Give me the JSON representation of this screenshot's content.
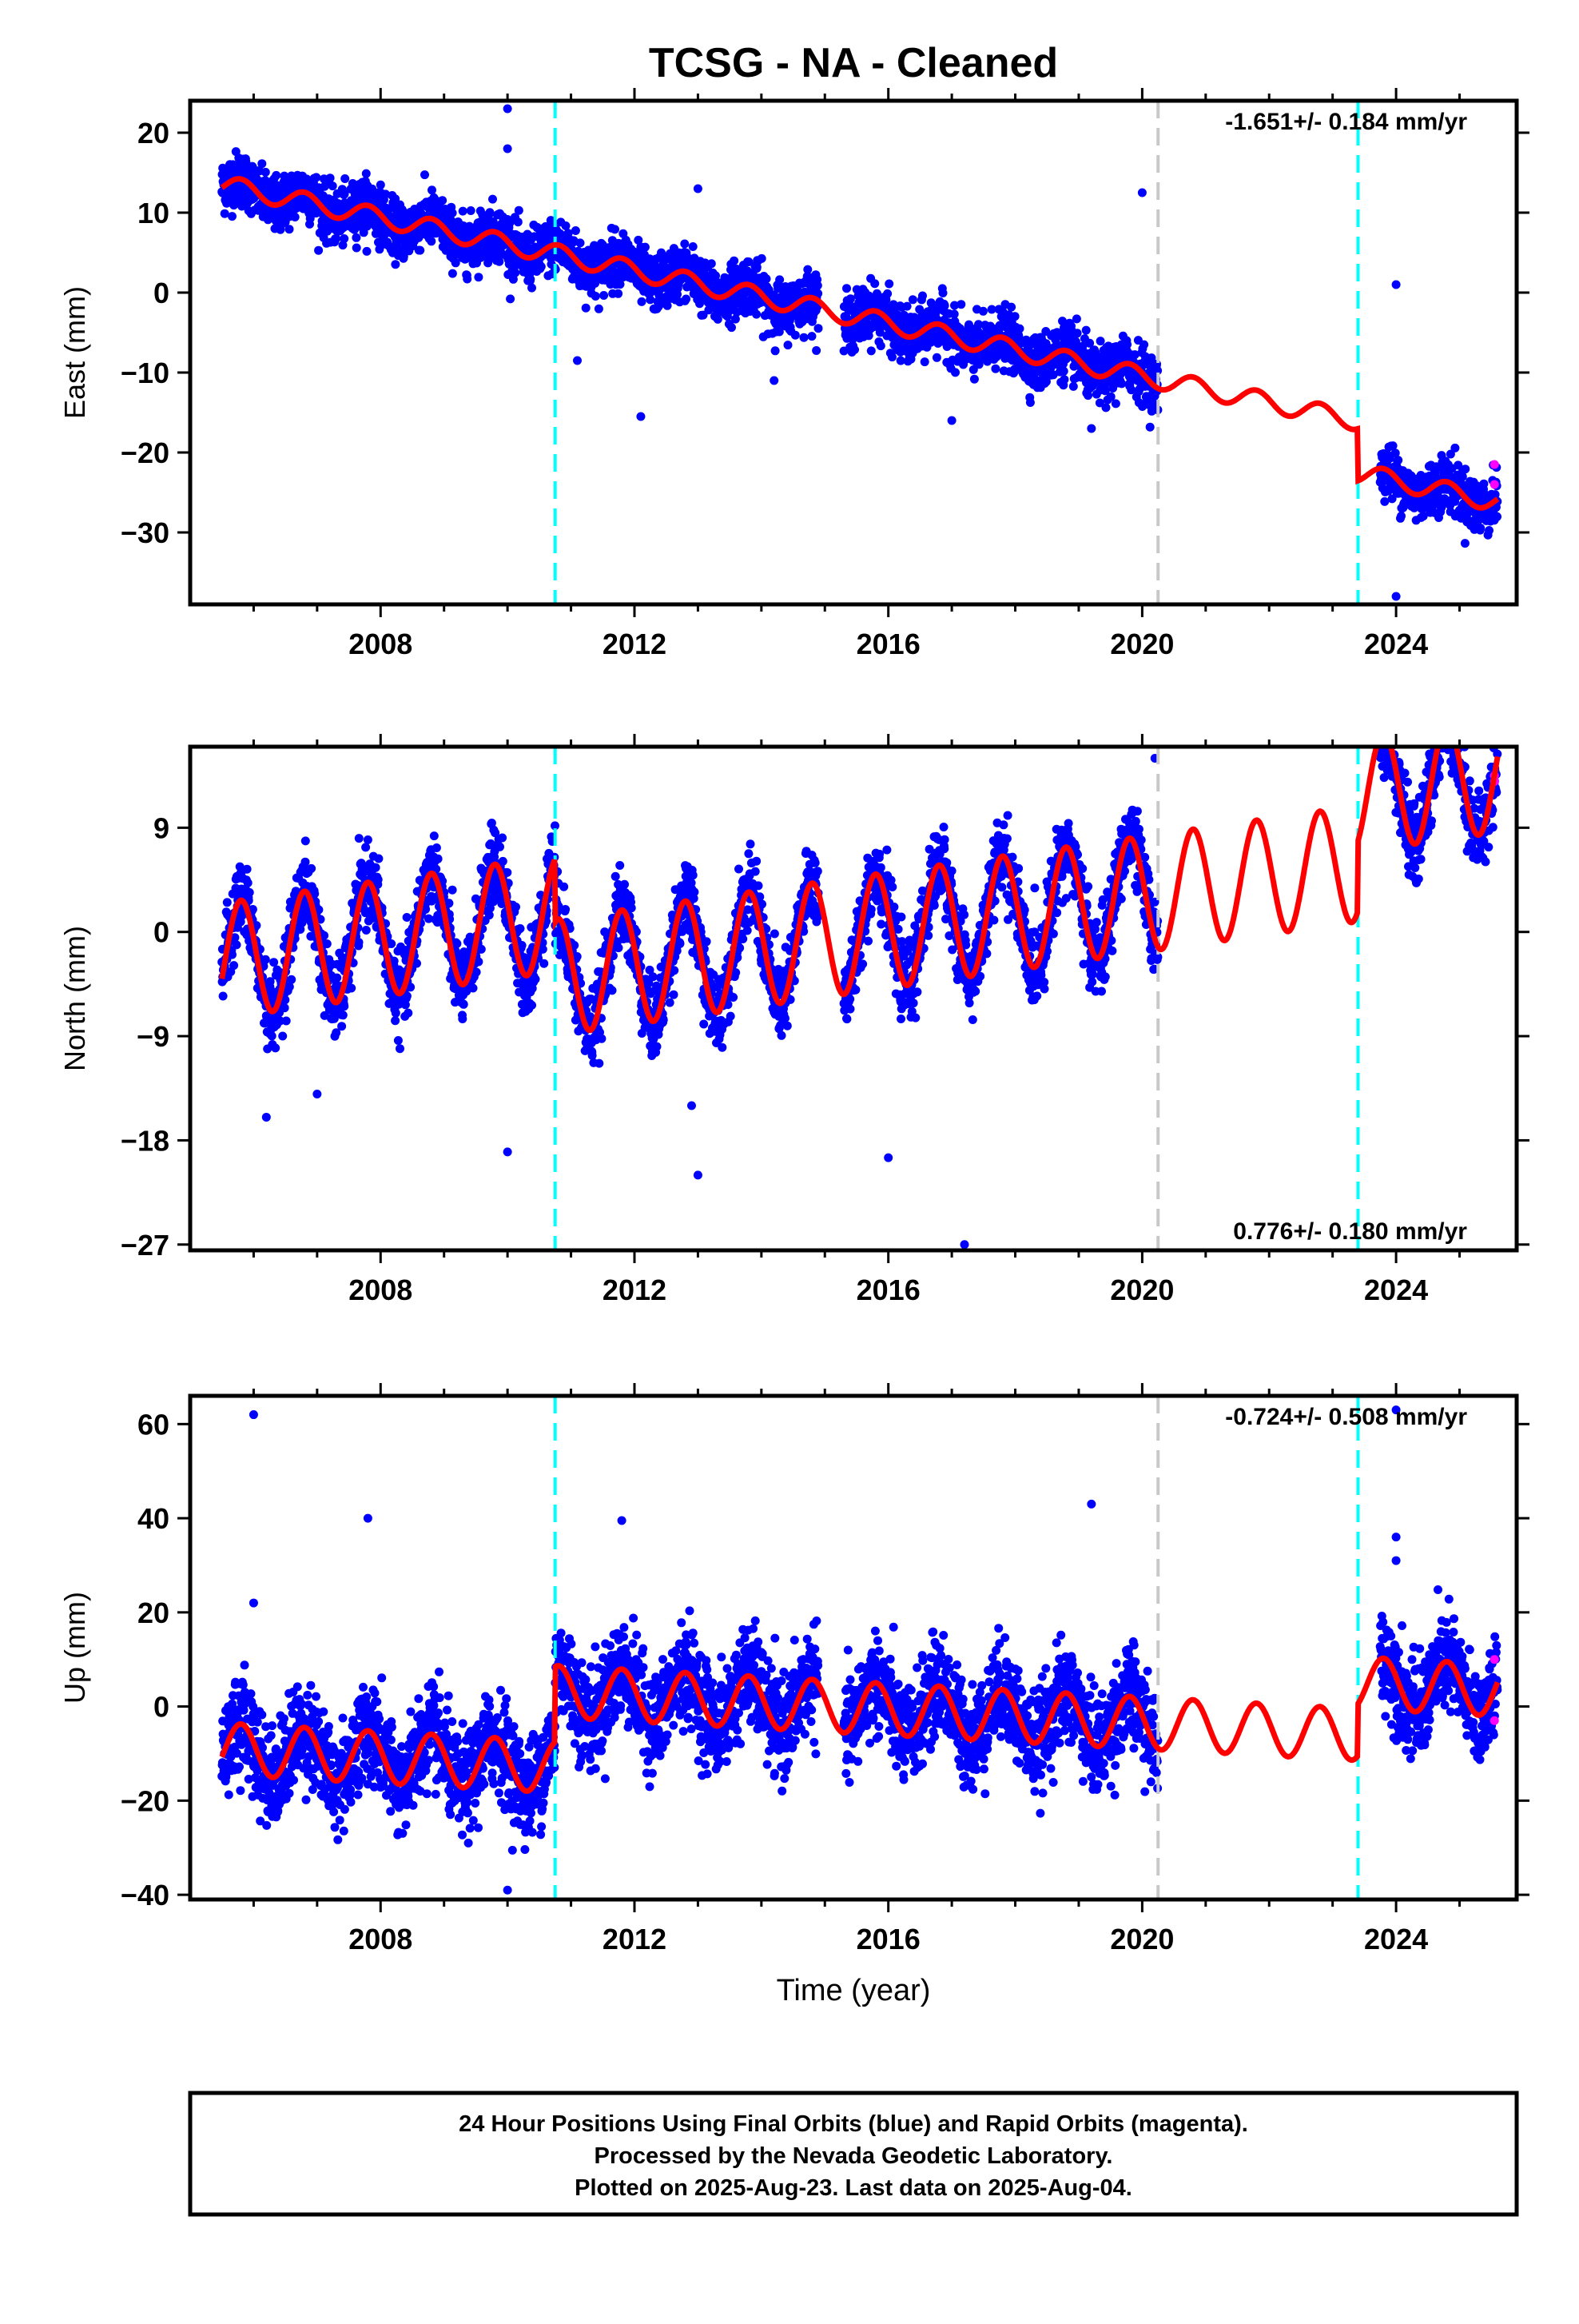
{
  "title": "TCSG  - NA - Cleaned",
  "colors": {
    "final_orbits": "#0000ff",
    "rapid_orbits": "#ff00ff",
    "model": "#ff0000",
    "equipment_change": "#00ffff",
    "reference_line": "#c8c8c8"
  },
  "chart_data": [
    {
      "type": "scatter",
      "panel": "east",
      "ylabel": "East (mm)",
      "xlim": [
        2005.0,
        2025.9
      ],
      "ylim": [
        -39,
        24
      ],
      "xticks": [
        2008,
        2012,
        2016,
        2020,
        2024
      ],
      "yticks": [
        20,
        10,
        0,
        -10,
        -20,
        -30
      ],
      "ytick_labels": [
        "20",
        "10",
        "0",
        "−10",
        "−20",
        "−30"
      ],
      "rate_label": "-1.651+/- 0.184 mm/yr",
      "rate_position": "top-right",
      "vertical_lines": [
        {
          "x": 2010.75,
          "color": "cyan"
        },
        {
          "x": 2020.25,
          "color": "gray"
        },
        {
          "x": 2023.4,
          "color": "cyan"
        }
      ],
      "model": {
        "value_at_start": 13.5,
        "rate": -1.651,
        "annual_amplitude": 1.2,
        "offsets": [
          {
            "x": 2023.4,
            "step": -6.5
          }
        ]
      },
      "data_segments": [
        [
          2005.5,
          2014.9
        ],
        [
          2015.3,
          2020.25
        ],
        [
          2023.75,
          2025.6
        ]
      ],
      "outliers": [
        [
          2010.0,
          23
        ],
        [
          2010.0,
          18
        ],
        [
          2011.1,
          -8.5
        ],
        [
          2012.1,
          -15.5
        ],
        [
          2013.0,
          13
        ],
        [
          2014.2,
          -11
        ],
        [
          2017.0,
          -16
        ],
        [
          2019.2,
          -17
        ],
        [
          2020.0,
          12.5
        ],
        [
          2024.0,
          1
        ],
        [
          2024.0,
          -38
        ]
      ],
      "rapid_points": [
        [
          2025.55,
          -21.5
        ],
        [
          2025.55,
          -24
        ]
      ]
    },
    {
      "type": "scatter",
      "panel": "north",
      "ylabel": "North (mm)",
      "xlim": [
        2005.0,
        2025.9
      ],
      "ylim": [
        -27.5,
        16
      ],
      "xticks": [
        2008,
        2012,
        2016,
        2020,
        2024
      ],
      "yticks": [
        9,
        0,
        -9,
        -18,
        -27
      ],
      "ytick_labels": [
        "9",
        "0",
        "−9",
        "−18",
        "−27"
      ],
      "rate_label": "0.776+/- 0.180 mm/yr",
      "rate_position": "bottom-right",
      "vertical_lines": [
        {
          "x": 2010.75,
          "color": "cyan"
        },
        {
          "x": 2020.25,
          "color": "gray"
        },
        {
          "x": 2023.4,
          "color": "cyan"
        }
      ],
      "model": {
        "value_at_start": -2.5,
        "rate": 0.776,
        "annual_amplitude": 5.0,
        "offsets": [
          {
            "x": 2010.75,
            "step": -5.5
          },
          {
            "x": 2023.4,
            "step": 6.0
          }
        ]
      },
      "data_segments": [
        [
          2005.5,
          2014.9
        ],
        [
          2015.3,
          2020.25
        ],
        [
          2023.75,
          2025.6
        ]
      ],
      "outliers": [
        [
          2006.2,
          -16
        ],
        [
          2007.0,
          -14
        ],
        [
          2010.0,
          -19
        ],
        [
          2012.9,
          -15
        ],
        [
          2013.0,
          -21
        ],
        [
          2016.0,
          -19.5
        ],
        [
          2017.2,
          -27
        ],
        [
          2020.2,
          15
        ],
        [
          2024.6,
          15
        ]
      ],
      "rapid_points": [
        [
          2025.55,
          13
        ],
        [
          2025.55,
          13.5
        ]
      ]
    },
    {
      "type": "scatter",
      "panel": "up",
      "ylabel": "Up (mm)",
      "xlim": [
        2005.0,
        2025.9
      ],
      "ylim": [
        -41,
        66
      ],
      "xticks": [
        2008,
        2012,
        2016,
        2020,
        2024
      ],
      "xlabel": "Time (year)",
      "yticks": [
        60,
        40,
        20,
        0,
        -20,
        -40
      ],
      "ytick_labels": [
        "60",
        "40",
        "20",
        "0",
        "−20",
        "−40"
      ],
      "rate_label": "-0.724+/- 0.508 mm/yr",
      "rate_position": "top-right",
      "vertical_lines": [
        {
          "x": 2010.75,
          "color": "cyan"
        },
        {
          "x": 2020.25,
          "color": "gray"
        },
        {
          "x": 2023.4,
          "color": "cyan"
        }
      ],
      "model": {
        "value_at_start": -9,
        "rate": -0.724,
        "annual_amplitude": 5.5,
        "offsets": [
          {
            "x": 2010.75,
            "step": 16
          },
          {
            "x": 2023.4,
            "step": 11
          }
        ]
      },
      "data_segments": [
        [
          2005.5,
          2014.9
        ],
        [
          2015.3,
          2020.25
        ],
        [
          2023.75,
          2025.6
        ]
      ],
      "outliers": [
        [
          2006.0,
          62
        ],
        [
          2006.0,
          22
        ],
        [
          2007.8,
          40
        ],
        [
          2011.8,
          39.5
        ],
        [
          2019.2,
          43
        ],
        [
          2024.0,
          63
        ],
        [
          2024.0,
          36
        ],
        [
          2024.0,
          31
        ],
        [
          2010.0,
          -39
        ]
      ],
      "rapid_points": [
        [
          2025.55,
          10
        ],
        [
          2025.55,
          -3
        ]
      ]
    }
  ],
  "footer": {
    "line1": "24 Hour Positions Using Final Orbits (blue) and Rapid Orbits (magenta).",
    "line2": "Processed by the Nevada Geodetic Laboratory.",
    "line3": "Plotted on 2025-Aug-23. Last data on 2025-Aug-04."
  }
}
